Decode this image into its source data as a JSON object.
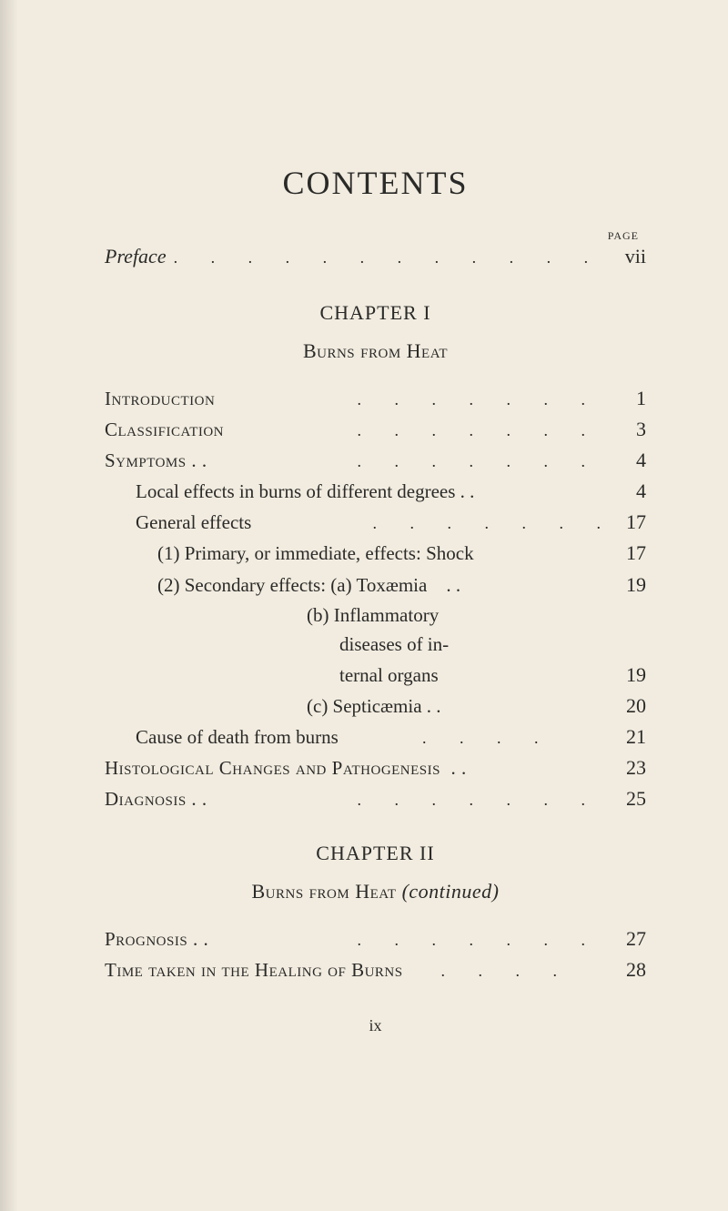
{
  "colors": {
    "background": "#f2ece0",
    "text": "#2a2a28"
  },
  "typography": {
    "font_family": "Georgia, 'Times New Roman', serif",
    "title_fontsize": 36,
    "body_fontsize": 21,
    "page_label_fontsize": 12
  },
  "title": "CONTENTS",
  "page_label": "PAGE",
  "preface": {
    "label": "Preface",
    "page": "vii"
  },
  "chapter1": {
    "label": "CHAPTER I",
    "title": "Burns from Heat",
    "entries": [
      {
        "text": "Introduction",
        "page": "1",
        "smallcaps": true,
        "indent": 0,
        "dots": true
      },
      {
        "text": "Classification",
        "page": "3",
        "smallcaps": true,
        "indent": 0,
        "dots": true
      },
      {
        "text": "Symptoms . .",
        "page": "4",
        "smallcaps": true,
        "indent": 0,
        "dots": true
      },
      {
        "text": "Local effects in burns of different degrees . .",
        "page": "4",
        "indent": 1
      },
      {
        "text": "General effects",
        "page": "17",
        "indent": 1,
        "dots": true
      },
      {
        "text": "(1) Primary, or immediate, effects: Shock",
        "page": "17",
        "indent": 2
      },
      {
        "text": "(2) Secondary effects: (a) Toxæmia    . .",
        "page": "19",
        "indent": 2
      },
      {
        "text": "(b) Inflammatory",
        "page": "",
        "indent": 3
      },
      {
        "text": "diseases of in-",
        "page": "",
        "indent": 4
      },
      {
        "text": "ternal organs",
        "page": "19",
        "indent": 4
      },
      {
        "text": "(c) Septicæmia . .",
        "page": "20",
        "indent": 3
      },
      {
        "text": "Cause of death from burns",
        "page": "21",
        "indent": 1,
        "dots": true,
        "dots_short": true
      },
      {
        "text": "Histological Changes and Pathogenesis  . .",
        "page": "23",
        "smallcaps": true,
        "indent": 0
      },
      {
        "text": "Diagnosis . .",
        "page": "25",
        "smallcaps": true,
        "indent": 0,
        "dots": true
      }
    ]
  },
  "chapter2": {
    "label": "CHAPTER II",
    "title_prefix": "Burns from Heat",
    "title_suffix": "(continued)",
    "entries": [
      {
        "text": "Prognosis . .",
        "page": "27",
        "smallcaps": true,
        "indent": 0,
        "dots": true
      },
      {
        "text": "Time taken in the Healing of Burns",
        "page": "28",
        "smallcaps": true,
        "indent": 0,
        "dots": true,
        "dots_short": true
      }
    ]
  },
  "footer": "ix"
}
